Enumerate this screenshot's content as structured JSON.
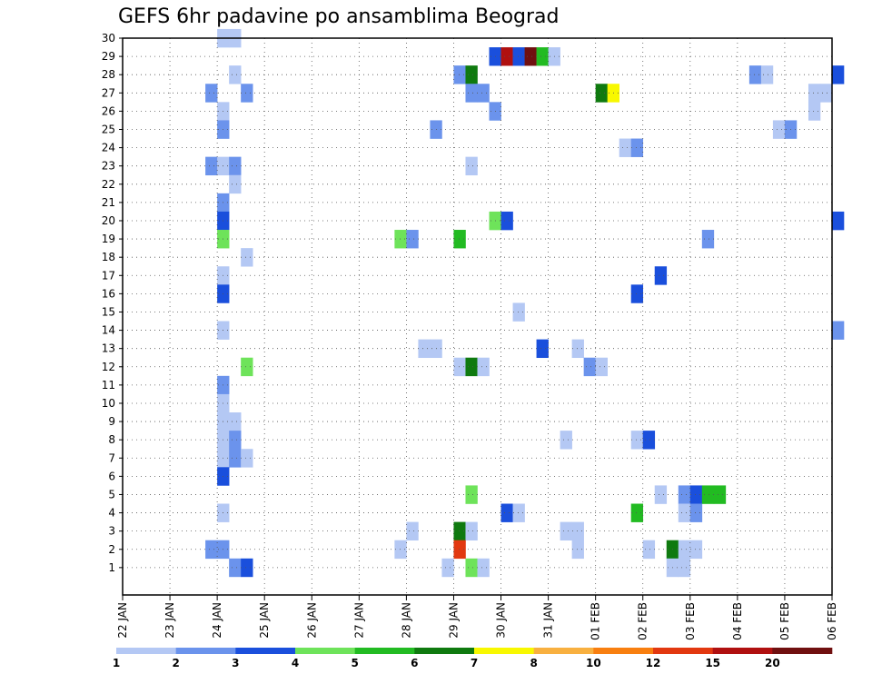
{
  "chart_data": {
    "type": "heatmap",
    "title": "GEFS 6hr padavine po ansamblima Beograd",
    "x_tick_labels": [
      "22 JAN",
      "23 JAN",
      "24 JAN",
      "25 JAN",
      "26 JAN",
      "27 JAN",
      "28 JAN",
      "29 JAN",
      "30 JAN",
      "31 JAN",
      "01 FEB",
      "02 FEB",
      "03 FEB",
      "04 FEB",
      "05 FEB",
      "06 FEB"
    ],
    "y_tick_labels": [
      "1",
      "2",
      "3",
      "4",
      "5",
      "6",
      "7",
      "8",
      "9",
      "10",
      "11",
      "12",
      "13",
      "14",
      "15",
      "16",
      "17",
      "18",
      "19",
      "20",
      "21",
      "22",
      "23",
      "24",
      "25",
      "26",
      "27",
      "28",
      "29",
      "30"
    ],
    "xlim": [
      "22 JAN",
      "06 FEB"
    ],
    "ylim": [
      0,
      30
    ],
    "grid": true,
    "colorbar": {
      "labels": [
        "1",
        "2",
        "3",
        "4",
        "5",
        "6",
        "7",
        "8",
        "10",
        "12",
        "15",
        "20"
      ],
      "colors": [
        "#b4c8f4",
        "#6b93ec",
        "#1a4fdc",
        "#6ee35a",
        "#22bb22",
        "#0f7a0f",
        "#f8f800",
        "#f8b040",
        "#f87f10",
        "#e23810",
        "#b01010",
        "#701010"
      ]
    },
    "cells": [
      {
        "m": 30,
        "t": 8,
        "c": 0
      },
      {
        "m": 30,
        "t": 9,
        "c": 0
      },
      {
        "m": 29,
        "t": 31,
        "c": 2
      },
      {
        "m": 29,
        "t": 32,
        "c": 10
      },
      {
        "m": 29,
        "t": 33,
        "c": 2
      },
      {
        "m": 29,
        "t": 34,
        "c": 11
      },
      {
        "m": 29,
        "t": 35,
        "c": 4
      },
      {
        "m": 29,
        "t": 36,
        "c": 0
      },
      {
        "m": 28,
        "t": 9,
        "c": 0
      },
      {
        "m": 28,
        "t": 28,
        "c": 1
      },
      {
        "m": 28,
        "t": 29,
        "c": 5
      },
      {
        "m": 28,
        "t": 53,
        "c": 1
      },
      {
        "m": 28,
        "t": 54,
        "c": 0
      },
      {
        "m": 28,
        "t": 60,
        "c": 2
      },
      {
        "m": 27,
        "t": 7,
        "c": 1
      },
      {
        "m": 27,
        "t": 10,
        "c": 1
      },
      {
        "m": 27,
        "t": 29,
        "c": 1
      },
      {
        "m": 27,
        "t": 30,
        "c": 1
      },
      {
        "m": 27,
        "t": 40,
        "c": 5
      },
      {
        "m": 27,
        "t": 41,
        "c": 6
      },
      {
        "m": 27,
        "t": 58,
        "c": 0
      },
      {
        "m": 27,
        "t": 59,
        "c": 0
      },
      {
        "m": 26,
        "t": 8,
        "c": 0
      },
      {
        "m": 26,
        "t": 31,
        "c": 1
      },
      {
        "m": 26,
        "t": 58,
        "c": 0
      },
      {
        "m": 25,
        "t": 8,
        "c": 1
      },
      {
        "m": 25,
        "t": 26,
        "c": 1
      },
      {
        "m": 25,
        "t": 55,
        "c": 0
      },
      {
        "m": 25,
        "t": 56,
        "c": 1
      },
      {
        "m": 24,
        "t": 42,
        "c": 0
      },
      {
        "m": 24,
        "t": 43,
        "c": 1
      },
      {
        "m": 23,
        "t": 7,
        "c": 1
      },
      {
        "m": 23,
        "t": 8,
        "c": 0
      },
      {
        "m": 23,
        "t": 9,
        "c": 1
      },
      {
        "m": 23,
        "t": 29,
        "c": 0
      },
      {
        "m": 22,
        "t": 9,
        "c": 0
      },
      {
        "m": 21,
        "t": 8,
        "c": 1
      },
      {
        "m": 20,
        "t": 8,
        "c": 2
      },
      {
        "m": 20,
        "t": 31,
        "c": 3
      },
      {
        "m": 20,
        "t": 32,
        "c": 2
      },
      {
        "m": 20,
        "t": 60,
        "c": 2
      },
      {
        "m": 19,
        "t": 8,
        "c": 3
      },
      {
        "m": 19,
        "t": 23,
        "c": 3
      },
      {
        "m": 19,
        "t": 24,
        "c": 1
      },
      {
        "m": 19,
        "t": 28,
        "c": 4
      },
      {
        "m": 19,
        "t": 49,
        "c": 1
      },
      {
        "m": 18,
        "t": 10,
        "c": 0
      },
      {
        "m": 17,
        "t": 8,
        "c": 0
      },
      {
        "m": 17,
        "t": 45,
        "c": 2
      },
      {
        "m": 16,
        "t": 8,
        "c": 2
      },
      {
        "m": 16,
        "t": 43,
        "c": 2
      },
      {
        "m": 15,
        "t": 33,
        "c": 0
      },
      {
        "m": 14,
        "t": 8,
        "c": 0
      },
      {
        "m": 14,
        "t": 60,
        "c": 1
      },
      {
        "m": 13,
        "t": 25,
        "c": 0
      },
      {
        "m": 13,
        "t": 26,
        "c": 0
      },
      {
        "m": 13,
        "t": 35,
        "c": 2
      },
      {
        "m": 13,
        "t": 38,
        "c": 0
      },
      {
        "m": 12,
        "t": 10,
        "c": 3
      },
      {
        "m": 12,
        "t": 28,
        "c": 0
      },
      {
        "m": 12,
        "t": 29,
        "c": 5
      },
      {
        "m": 12,
        "t": 30,
        "c": 0
      },
      {
        "m": 12,
        "t": 39,
        "c": 1
      },
      {
        "m": 12,
        "t": 40,
        "c": 0
      },
      {
        "m": 11,
        "t": 8,
        "c": 1
      },
      {
        "m": 10,
        "t": 8,
        "c": 0
      },
      {
        "m": 9,
        "t": 8,
        "c": 0
      },
      {
        "m": 9,
        "t": 9,
        "c": 0
      },
      {
        "m": 8,
        "t": 8,
        "c": 0
      },
      {
        "m": 8,
        "t": 9,
        "c": 1
      },
      {
        "m": 8,
        "t": 37,
        "c": 0
      },
      {
        "m": 8,
        "t": 43,
        "c": 0
      },
      {
        "m": 8,
        "t": 44,
        "c": 2
      },
      {
        "m": 7,
        "t": 8,
        "c": 0
      },
      {
        "m": 7,
        "t": 9,
        "c": 1
      },
      {
        "m": 7,
        "t": 10,
        "c": 0
      },
      {
        "m": 6,
        "t": 8,
        "c": 2
      },
      {
        "m": 5,
        "t": 29,
        "c": 3
      },
      {
        "m": 5,
        "t": 45,
        "c": 0
      },
      {
        "m": 5,
        "t": 47,
        "c": 1
      },
      {
        "m": 5,
        "t": 48,
        "c": 2
      },
      {
        "m": 5,
        "t": 49,
        "c": 4
      },
      {
        "m": 5,
        "t": 50,
        "c": 4
      },
      {
        "m": 4,
        "t": 8,
        "c": 0
      },
      {
        "m": 4,
        "t": 32,
        "c": 2
      },
      {
        "m": 4,
        "t": 33,
        "c": 0
      },
      {
        "m": 4,
        "t": 43,
        "c": 4
      },
      {
        "m": 4,
        "t": 47,
        "c": 0
      },
      {
        "m": 4,
        "t": 48,
        "c": 1
      },
      {
        "m": 3,
        "t": 24,
        "c": 0
      },
      {
        "m": 3,
        "t": 28,
        "c": 5
      },
      {
        "m": 3,
        "t": 29,
        "c": 0
      },
      {
        "m": 3,
        "t": 37,
        "c": 0
      },
      {
        "m": 3,
        "t": 38,
        "c": 0
      },
      {
        "m": 2,
        "t": 7,
        "c": 1
      },
      {
        "m": 2,
        "t": 8,
        "c": 1
      },
      {
        "m": 2,
        "t": 23,
        "c": 0
      },
      {
        "m": 2,
        "t": 28,
        "c": 9
      },
      {
        "m": 2,
        "t": 38,
        "c": 0
      },
      {
        "m": 2,
        "t": 44,
        "c": 0
      },
      {
        "m": 2,
        "t": 46,
        "c": 5
      },
      {
        "m": 2,
        "t": 47,
        "c": 0
      },
      {
        "m": 2,
        "t": 48,
        "c": 0
      },
      {
        "m": 1,
        "t": 9,
        "c": 1
      },
      {
        "m": 1,
        "t": 10,
        "c": 2
      },
      {
        "m": 1,
        "t": 27,
        "c": 0
      },
      {
        "m": 1,
        "t": 29,
        "c": 3
      },
      {
        "m": 1,
        "t": 30,
        "c": 0
      },
      {
        "m": 1,
        "t": 46,
        "c": 0
      },
      {
        "m": 1,
        "t": 47,
        "c": 0
      }
    ]
  }
}
